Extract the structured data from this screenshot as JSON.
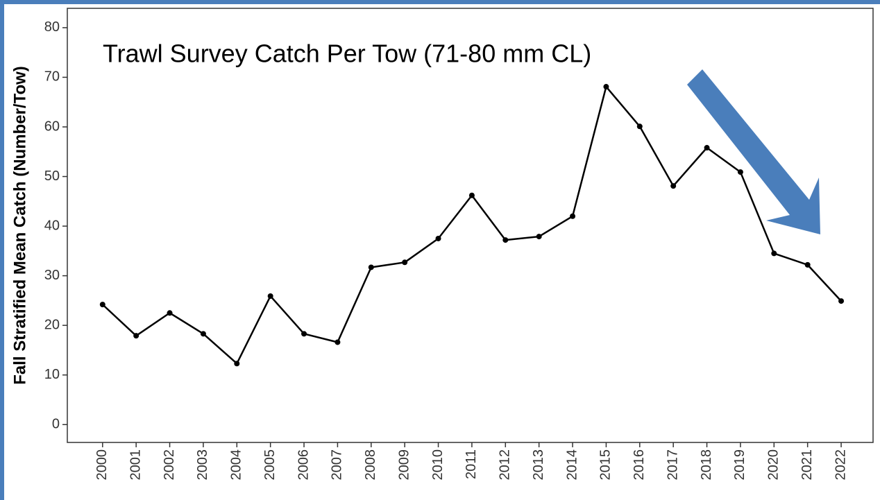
{
  "chart_data": {
    "type": "line",
    "title": "Trawl Survey Catch Per Tow (71-80 mm CL)",
    "y_label": "Fall Stratified Mean Catch (Number/Tow)",
    "x": [
      2000,
      2001,
      2002,
      2003,
      2004,
      2005,
      2006,
      2007,
      2008,
      2009,
      2010,
      2011,
      2012,
      2013,
      2014,
      2015,
      2016,
      2017,
      2018,
      2019,
      2020,
      2021,
      2022
    ],
    "series": [
      {
        "color": "#000000",
        "values": [
          24.2,
          17.9,
          22.5,
          18.3,
          12.3,
          25.9,
          18.3,
          16.6,
          31.7,
          32.7,
          37.5,
          46.2,
          37.2,
          37.9,
          42.0,
          68.1,
          60.1,
          48.1,
          55.8,
          50.9,
          34.5,
          32.2,
          24.9
        ]
      }
    ],
    "xlim": [
      1998.95,
      2022.95
    ],
    "xticks": [
      2000,
      2001,
      2002,
      2003,
      2004,
      2005,
      2006,
      2007,
      2008,
      2009,
      2010,
      2011,
      2012,
      2013,
      2014,
      2015,
      2016,
      2017,
      2018,
      2019,
      2020,
      2021,
      2022
    ],
    "ylim": [
      -3.6,
      83.9
    ],
    "yticks": [
      0,
      10,
      20,
      30,
      40,
      50,
      60,
      70,
      80
    ],
    "grid": false
  }
}
